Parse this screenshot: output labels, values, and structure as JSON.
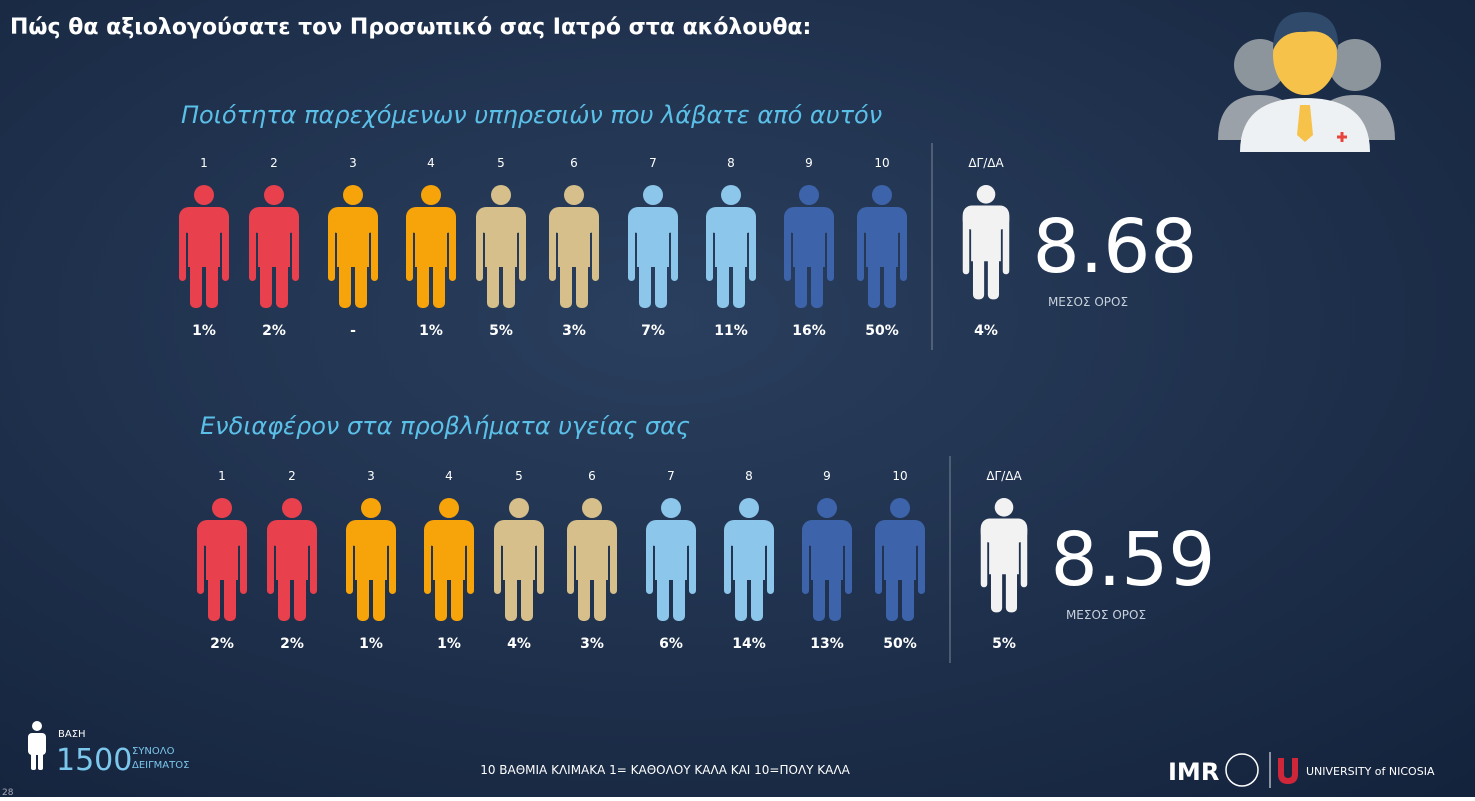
{
  "title": "Πώς θα αξιολογούσατε τον Προσωπικό σας Ιατρό στα ακόλουθα:",
  "sections": [
    {
      "heading": "Ποιότητα παρεχόμενων υπηρεσιών που λάβατε από αυτόν",
      "scale": [
        "1",
        "2",
        "3",
        "4",
        "5",
        "6",
        "7",
        "8",
        "9",
        "10",
        "ΔΓ/ΔΑ"
      ],
      "percents": [
        "1%",
        "2%",
        "-",
        "1%",
        "5%",
        "3%",
        "7%",
        "11%",
        "16%",
        "50%",
        "4%"
      ],
      "mean": "8.68",
      "mean_label": "ΜΕΣΟΣ ΟΡΟΣ"
    },
    {
      "heading": "Ενδιαφέρον στα προβλήματα υγείας σας",
      "scale": [
        "1",
        "2",
        "3",
        "4",
        "5",
        "6",
        "7",
        "8",
        "9",
        "10",
        "ΔΓ/ΔΑ"
      ],
      "percents": [
        "2%",
        "2%",
        "1%",
        "1%",
        "4%",
        "3%",
        "6%",
        "14%",
        "13%",
        "50%",
        "5%"
      ],
      "mean": "8.59",
      "mean_label": "ΜΕΣΟΣ ΟΡΟΣ"
    }
  ],
  "footer": {
    "base_label": "ΒΑΣΗ",
    "base": "1500",
    "base_note_1": "ΣΥΝΟΛΟ",
    "base_note_2": "ΔΕΙΓΜΑΤΟΣ",
    "scale_note": "10 ΒΑΘΜΙΑ ΚΛΙΜΑΚΑ  1= ΚΑΘΟΛΟΥ ΚΑΛΑ ΚΑΙ 10=ΠΟΛΥ ΚΑΛΑ",
    "logo_imr": "IMR",
    "logo_unic": "UNIVERSITY of NICOSIA",
    "page": "28"
  }
}
